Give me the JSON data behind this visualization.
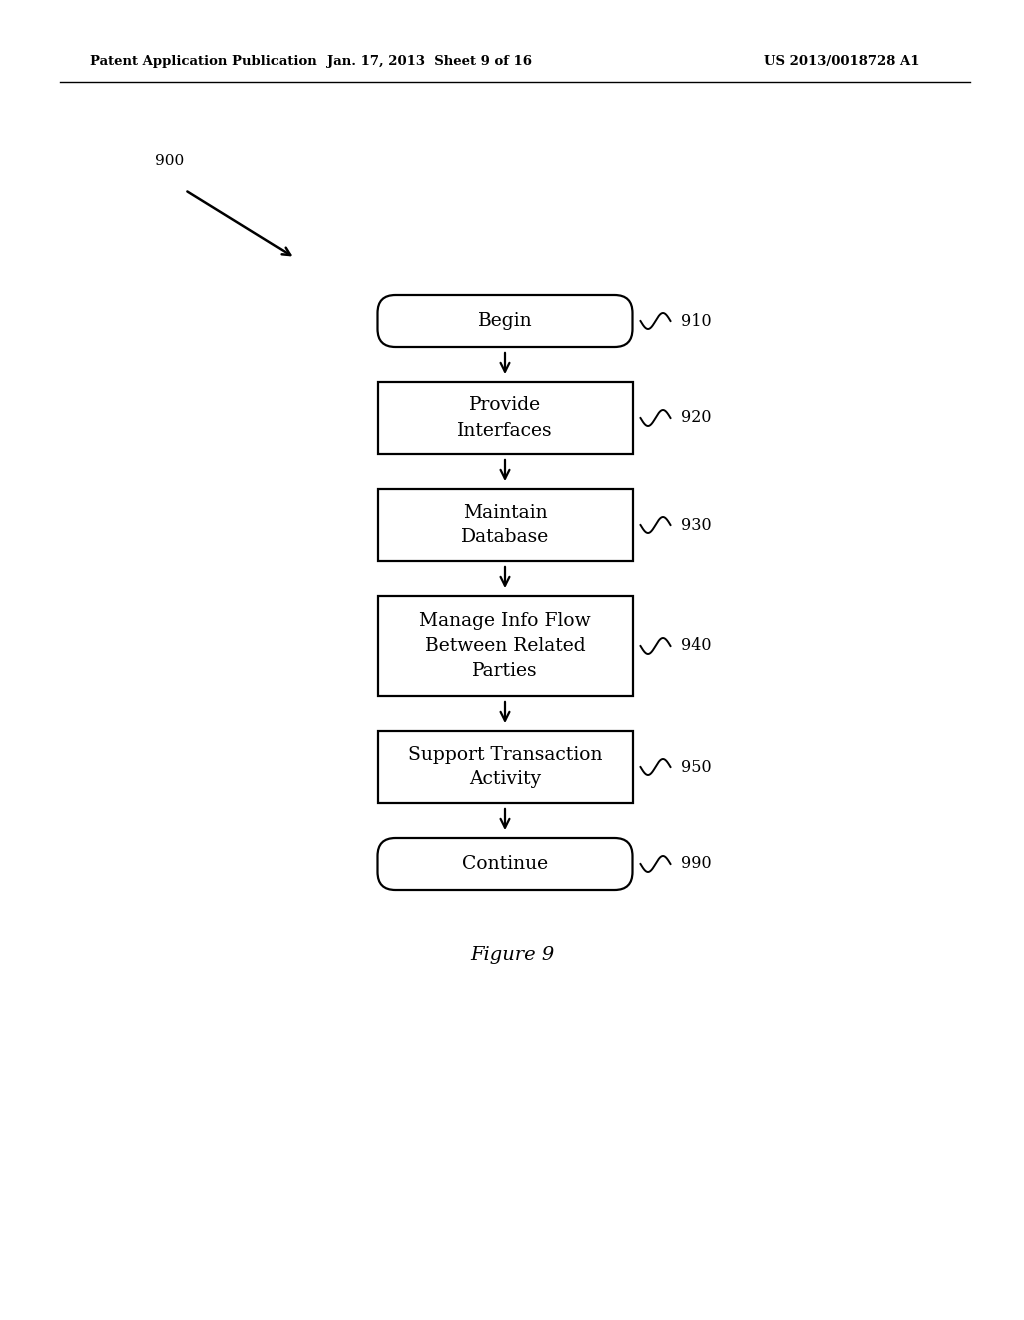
{
  "header_left": "Patent Application Publication",
  "header_mid": "Jan. 17, 2013  Sheet 9 of 16",
  "header_right": "US 2013/0018728 A1",
  "figure_label": "Figure 9",
  "diagram_label": "900",
  "boxes": [
    {
      "id": "910",
      "shape": "rounded",
      "lines": [
        "Begin"
      ]
    },
    {
      "id": "920",
      "shape": "rect",
      "lines": [
        "Provide",
        "Interfaces"
      ]
    },
    {
      "id": "930",
      "shape": "rect",
      "lines": [
        "Maintain",
        "Database"
      ]
    },
    {
      "id": "940",
      "shape": "rect",
      "lines": [
        "Manage Info Flow",
        "Between Related",
        "Parties"
      ]
    },
    {
      "id": "950",
      "shape": "rect",
      "lines": [
        "Support Transaction",
        "Activity"
      ]
    },
    {
      "id": "990",
      "shape": "rounded",
      "lines": [
        "Continue"
      ]
    }
  ],
  "background_color": "#ffffff",
  "text_color": "#000000"
}
